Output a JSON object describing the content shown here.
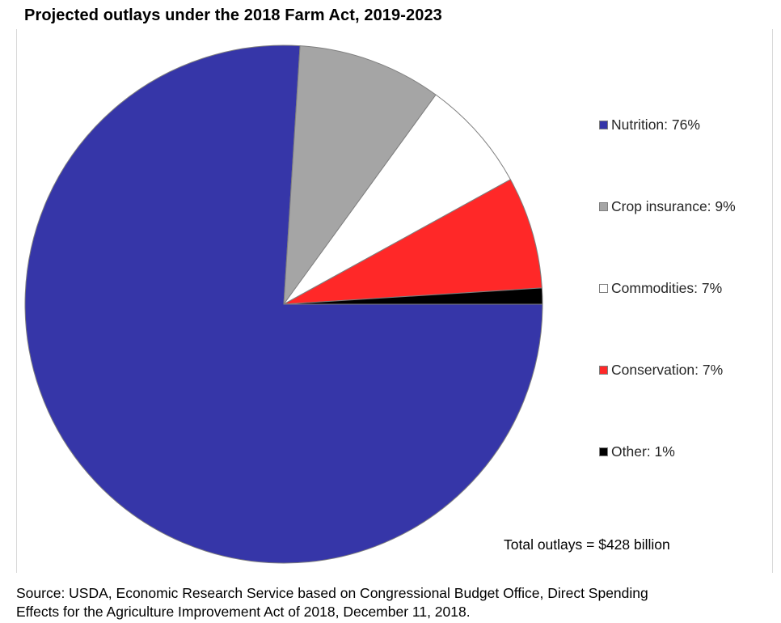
{
  "chart": {
    "title": "Projected outlays under the 2018 Farm Act, 2019-2023",
    "total_label": "Total outlays = $428 billion",
    "source_line1": "Source: USDA, Economic Research Service based on Congressional Budget Office, Direct Spending",
    "source_line2": "Effects for the Agriculture Improvement Act of 2018, December 11, 2018."
  },
  "chart_data": {
    "type": "pie",
    "title": "Projected outlays under the 2018 Farm Act, 2019-2023",
    "slices": [
      {
        "label": "Nutrition: 76%",
        "category": "Nutrition",
        "value": 76,
        "color": "#3636a8"
      },
      {
        "label": "Crop insurance: 9%",
        "category": "Crop insurance",
        "value": 9,
        "color": "#a5a5a5"
      },
      {
        "label": "Commodities: 7%",
        "category": "Commodities",
        "value": 7,
        "color": "#ffffff"
      },
      {
        "label": "Conservation: 7%",
        "category": "Conservation",
        "value": 7,
        "color": "#ff2828"
      },
      {
        "label": "Other: 1%",
        "category": "Other",
        "value": 1,
        "color": "#000000"
      }
    ],
    "total": "$428 billion",
    "legend_position": "right"
  }
}
